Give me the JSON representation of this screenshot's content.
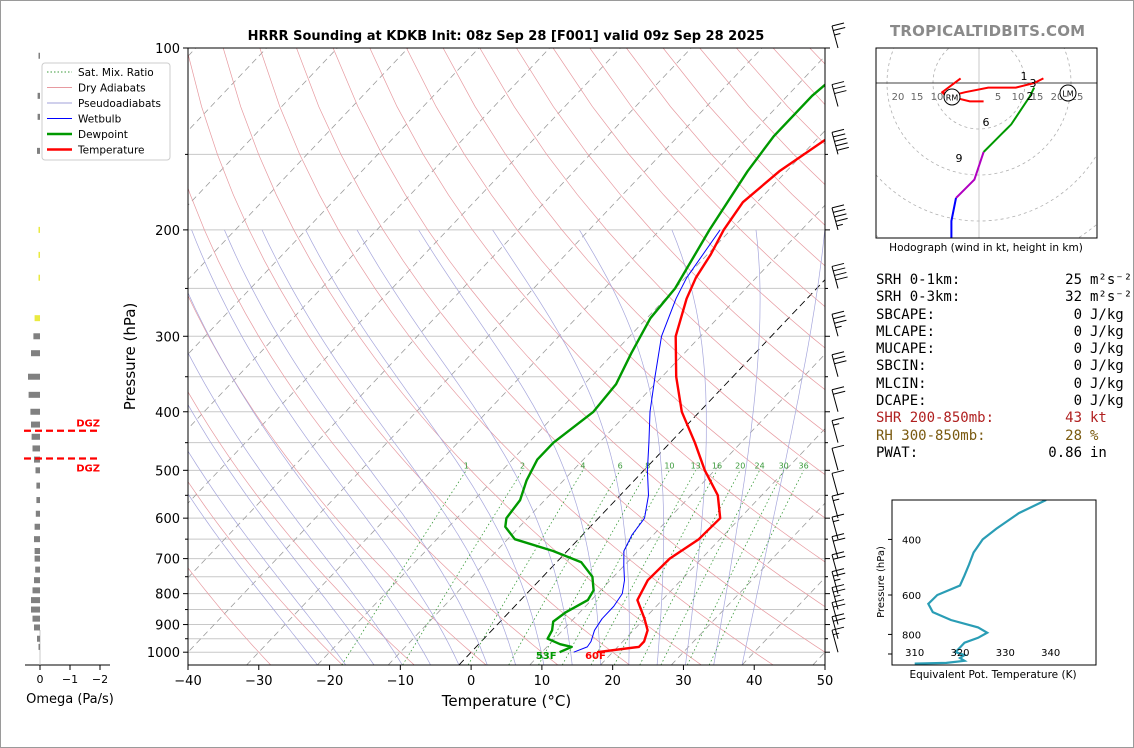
{
  "watermark": "TROPICALTIDBITS.COM",
  "chart_data": [
    {
      "type": "line",
      "kind": "skew-t",
      "title": "HRRR Sounding at KDKB Init: 08z Sep 28 [F001] valid 09z Sep 28 2025",
      "xlabel": "Temperature (°C)",
      "ylabel": "Pressure (hPa)",
      "xlim": [
        -40,
        50
      ],
      "ylim": [
        1050,
        100
      ],
      "y_scale": "log",
      "x_ticks": [
        "−40",
        "−30",
        "−20",
        "−10",
        "0",
        "10",
        "20",
        "30",
        "40",
        "50"
      ],
      "y_ticks": [
        100,
        200,
        300,
        400,
        500,
        600,
        700,
        800,
        900,
        1000
      ],
      "grid": true,
      "legend_position": "upper-left",
      "legend": [
        {
          "name": "Sat. Mix. Ratio",
          "color": "#3a9a3a",
          "style": "dotted"
        },
        {
          "name": "Dry Adiabats",
          "color": "#e79aa0",
          "style": "solid"
        },
        {
          "name": "Pseudoadiabats",
          "color": "#a0a0d8",
          "style": "solid"
        },
        {
          "name": "Wetbulb",
          "color": "#0000ff",
          "style": "solid"
        },
        {
          "name": "Dewpoint",
          "color": "#009900",
          "style": "solid"
        },
        {
          "name": "Temperature",
          "color": "#ff0000",
          "style": "solid"
        }
      ],
      "mixing_ratio_labels": [
        "1",
        "2",
        "4",
        "6",
        "8",
        "10",
        "13",
        "16",
        "20",
        "24",
        "30",
        "36"
      ],
      "series": [
        {
          "name": "Temperature",
          "color": "#ff0000",
          "points": [
            [
              1000,
              17.8
            ],
            [
              980,
              23
            ],
            [
              960,
              23
            ],
            [
              920,
              22
            ],
            [
              880,
              20
            ],
            [
              820,
              16.5
            ],
            [
              760,
              15.3
            ],
            [
              700,
              15.5
            ],
            [
              650,
              17
            ],
            [
              600,
              17.2
            ],
            [
              550,
              13.8
            ],
            [
              500,
              8.6
            ],
            [
              450,
              3.5
            ],
            [
              400,
              -2.5
            ],
            [
              350,
              -8
            ],
            [
              300,
              -13.5
            ],
            [
              260,
              -17
            ],
            [
              240,
              -18.5
            ],
            [
              220,
              -19.5
            ],
            [
              200,
              -21
            ],
            [
              180,
              -22
            ],
            [
              160,
              -21
            ],
            [
              140,
              -18.5
            ],
            [
              120,
              -14
            ],
            [
              100,
              -7
            ]
          ]
        },
        {
          "name": "Dewpoint",
          "color": "#009900",
          "points": [
            [
              1000,
              12.5
            ],
            [
              980,
              13.5
            ],
            [
              970,
              11.5
            ],
            [
              950,
              9
            ],
            [
              920,
              8.5
            ],
            [
              890,
              7.5
            ],
            [
              860,
              8
            ],
            [
              820,
              9.5
            ],
            [
              790,
              9
            ],
            [
              750,
              7
            ],
            [
              710,
              3.5
            ],
            [
              680,
              -2
            ],
            [
              650,
              -9
            ],
            [
              620,
              -12
            ],
            [
              600,
              -13
            ],
            [
              560,
              -13.5
            ],
            [
              520,
              -15.2
            ],
            [
              480,
              -16.5
            ],
            [
              450,
              -16.5
            ],
            [
              400,
              -15
            ],
            [
              360,
              -15.5
            ],
            [
              320,
              -17.5
            ],
            [
              280,
              -19.5
            ],
            [
              250,
              -20
            ],
            [
              200,
              -23
            ],
            [
              160,
              -25.5
            ],
            [
              140,
              -26.5
            ],
            [
              120,
              -26.5
            ],
            [
              100,
              -25
            ]
          ]
        },
        {
          "name": "Wetbulb",
          "color": "#0000ff",
          "points": [
            [
              1000,
              14.5
            ],
            [
              980,
              15.7
            ],
            [
              960,
              15.5
            ],
            [
              920,
              14.5
            ],
            [
              880,
              14
            ],
            [
              840,
              14
            ],
            [
              800,
              13.5
            ],
            [
              760,
              12
            ],
            [
              720,
              10
            ],
            [
              680,
              8
            ],
            [
              640,
              7
            ],
            [
              600,
              6.5
            ],
            [
              550,
              4
            ],
            [
              500,
              0.5
            ],
            [
              450,
              -3
            ],
            [
              400,
              -7
            ],
            [
              350,
              -11
            ],
            [
              300,
              -15.5
            ],
            [
              260,
              -18.5
            ],
            [
              240,
              -19.8
            ],
            [
              200,
              -21.5
            ]
          ]
        }
      ],
      "annotations": [
        {
          "text": "53F",
          "color": "#009900"
        },
        {
          "text": "60F",
          "color": "#ff0000"
        }
      ],
      "wind_barbs_kt": [
        [
          1000,
          15
        ],
        [
          950,
          20
        ],
        [
          900,
          20
        ],
        [
          850,
          25
        ],
        [
          800,
          25
        ],
        [
          750,
          20
        ],
        [
          700,
          20
        ],
        [
          650,
          15
        ],
        [
          600,
          15
        ],
        [
          550,
          10
        ],
        [
          500,
          10
        ],
        [
          450,
          15
        ],
        [
          400,
          20
        ],
        [
          350,
          30
        ],
        [
          300,
          35
        ],
        [
          250,
          40
        ],
        [
          200,
          45
        ],
        [
          150,
          50
        ],
        [
          125,
          30
        ],
        [
          100,
          25
        ]
      ]
    },
    {
      "type": "bar",
      "xlabel": "Omega (Pa/s)",
      "x_ticks": [
        "0",
        "−1",
        "−2"
      ],
      "xlim": [
        0.4,
        -2.5
      ],
      "dgz_label": "DGZ",
      "dgz_levels_hpa": [
        430,
        478
      ],
      "bars": [
        [
          103,
          0.05
        ],
        [
          120,
          0.08
        ],
        [
          130,
          0.08
        ],
        [
          148,
          0.1
        ],
        [
          200,
          0.05
        ],
        [
          220,
          0.05
        ],
        [
          240,
          0.05
        ],
        [
          280,
          0.18
        ],
        [
          300,
          0.22
        ],
        [
          320,
          0.3
        ],
        [
          350,
          0.4
        ],
        [
          375,
          0.38
        ],
        [
          400,
          0.32
        ],
        [
          420,
          0.3
        ],
        [
          440,
          0.28
        ],
        [
          460,
          0.25
        ],
        [
          480,
          0.2
        ],
        [
          500,
          0.15
        ],
        [
          530,
          0.12
        ],
        [
          560,
          0.12
        ],
        [
          590,
          0.14
        ],
        [
          620,
          0.18
        ],
        [
          650,
          0.2
        ],
        [
          680,
          0.18
        ],
        [
          700,
          0.18
        ],
        [
          730,
          0.16
        ],
        [
          760,
          0.2
        ],
        [
          790,
          0.25
        ],
        [
          820,
          0.3
        ],
        [
          850,
          0.3
        ],
        [
          880,
          0.25
        ],
        [
          910,
          0.2
        ],
        [
          950,
          0.1
        ],
        [
          980,
          0.05
        ]
      ],
      "bar_colors": {
        "down": "#eaea40",
        "up": "#808080"
      }
    },
    {
      "type": "line",
      "kind": "hodograph",
      "xlabel": "Hodograph (wind in kt, height in km)",
      "ring_labels": [
        "20",
        "15",
        "10",
        "5",
        "10",
        "15",
        "20",
        "25"
      ],
      "storm_motion_labels": [
        "RM",
        "LM"
      ],
      "height_labels": [
        "1",
        "2",
        "3",
        "6",
        "9"
      ],
      "segments": [
        {
          "color": "#ff0000",
          "points": [
            [
              -4,
              1
            ],
            [
              -8,
              -2
            ],
            [
              -7,
              -3
            ],
            [
              -3,
              -2
            ],
            [
              2,
              -1
            ],
            [
              8,
              -1
            ],
            [
              10,
              -0.5
            ],
            [
              12,
              0
            ],
            [
              14,
              1
            ]
          ]
        },
        {
          "color": "#ff0000",
          "points": [
            [
              -8,
              -2
            ],
            [
              -6,
              -3
            ],
            [
              -2,
              -4
            ],
            [
              1,
              -4
            ]
          ]
        },
        {
          "color": "#009900",
          "points": [
            [
              12,
              -1
            ],
            [
              11,
              -3
            ],
            [
              9,
              -6
            ],
            [
              7,
              -9
            ],
            [
              6,
              -10
            ],
            [
              5,
              -11
            ],
            [
              3,
              -13
            ],
            [
              1,
              -15
            ]
          ]
        },
        {
          "color": "#b000c0",
          "points": [
            [
              1,
              -15
            ],
            [
              0,
              -18
            ],
            [
              -1,
              -21
            ],
            [
              -3,
              -23
            ],
            [
              -5,
              -25
            ]
          ]
        },
        {
          "color": "#0000ff",
          "points": [
            [
              -5,
              -25
            ],
            [
              -6,
              -30
            ],
            [
              -6,
              -36
            ],
            [
              -5,
              -44
            ]
          ]
        }
      ]
    },
    {
      "type": "line",
      "xlabel": "Equivalent Pot. Temperature (K)",
      "ylabel": "Pressure (hPa)",
      "x_ticks": [
        "310",
        "320",
        "330",
        "340"
      ],
      "y_ticks": [
        "400",
        "600",
        "800"
      ],
      "xlim": [
        305,
        350
      ],
      "ylim": [
        1000,
        300
      ],
      "series": [
        {
          "name": "",
          "color": "#2a9db5",
          "points": [
            [
              300,
              339
            ],
            [
              330,
              333
            ],
            [
              370,
              328
            ],
            [
              400,
              325
            ],
            [
              440,
              323
            ],
            [
              480,
              322
            ],
            [
              520,
              321
            ],
            [
              560,
              320
            ],
            [
              600,
              315
            ],
            [
              640,
              313
            ],
            [
              680,
              314
            ],
            [
              720,
              318
            ],
            [
              760,
              324
            ],
            [
              790,
              326
            ],
            [
              820,
              324
            ],
            [
              850,
              321
            ],
            [
              880,
              320
            ],
            [
              910,
              319
            ],
            [
              930,
              321
            ],
            [
              950,
              320
            ],
            [
              970,
              321
            ],
            [
              985,
              317
            ],
            [
              990,
              310
            ]
          ]
        }
      ]
    }
  ],
  "stats": [
    {
      "label": "SRH 0-1km:",
      "value": "25",
      "unit": "m²s⁻²",
      "color": "#000000"
    },
    {
      "label": "SRH 0-3km:",
      "value": "32",
      "unit": "m²s⁻²",
      "color": "#000000"
    },
    {
      "label": "SBCAPE:",
      "value": "0",
      "unit": "J/kg",
      "color": "#000000"
    },
    {
      "label": "MLCAPE:",
      "value": "0",
      "unit": "J/kg",
      "color": "#000000"
    },
    {
      "label": "MUCAPE:",
      "value": "0",
      "unit": "J/kg",
      "color": "#000000"
    },
    {
      "label": "SBCIN:",
      "value": "0",
      "unit": "J/kg",
      "color": "#000000"
    },
    {
      "label": "MLCIN:",
      "value": "0",
      "unit": "J/kg",
      "color": "#000000"
    },
    {
      "label": "DCAPE:",
      "value": "0",
      "unit": "J/kg",
      "color": "#000000"
    },
    {
      "label": "SHR 200-850mb:",
      "value": "43",
      "unit": "kt",
      "color": "#b02020"
    },
    {
      "label": "RH 300-850mb:",
      "value": "28",
      "unit": "%",
      "color": "#7a5a10"
    },
    {
      "label": "PWAT:",
      "value": "0.86",
      "unit": "in",
      "color": "#000000"
    }
  ]
}
